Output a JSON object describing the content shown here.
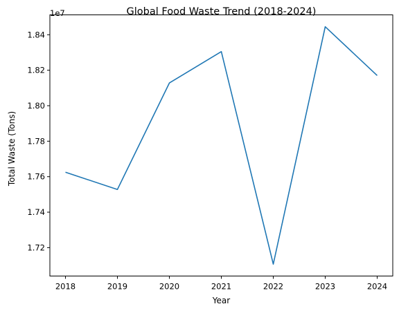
{
  "chart_data": {
    "type": "line",
    "title": "Global Food Waste Trend (2018-2024)",
    "xlabel": "Year",
    "ylabel": "Total Waste (Tons)",
    "y_offset_label": "1e7",
    "x": [
      2018,
      2019,
      2020,
      2021,
      2022,
      2023,
      2024
    ],
    "x_tick_labels": [
      "2018",
      "2019",
      "2020",
      "2021",
      "2022",
      "2023",
      "2024"
    ],
    "series": [
      {
        "values": [
          17625000,
          17528000,
          18128000,
          18305000,
          17107000,
          18445000,
          18170000
        ],
        "color": "#1f77b4"
      }
    ],
    "y_ticks": [
      17200000,
      17400000,
      17600000,
      17800000,
      18000000,
      18200000,
      18400000
    ],
    "y_tick_labels": [
      "1.72",
      "1.74",
      "1.76",
      "1.78",
      "1.80",
      "1.82",
      "1.84"
    ],
    "xlim": [
      2017.7,
      2024.3
    ],
    "ylim": [
      17040000,
      18512000
    ],
    "grid": false,
    "legend": "none"
  }
}
